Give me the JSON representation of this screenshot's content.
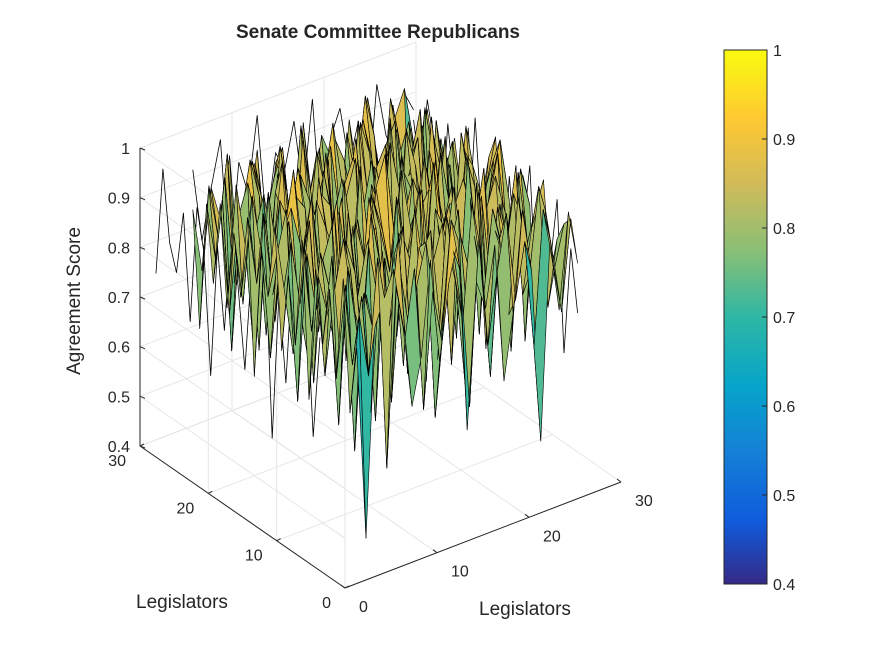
{
  "chart_data": {
    "type": "surface3d",
    "title": "Senate Committee Republicans",
    "xlabel": "Legislators",
    "ylabel": "Legislators",
    "zlabel": "Agreement Score",
    "xlim": [
      0,
      30
    ],
    "ylim": [
      0,
      30
    ],
    "zlim": [
      0.4,
      1
    ],
    "x_ticks": [
      "0",
      "10",
      "20",
      "30"
    ],
    "y_ticks": [
      "0",
      "10",
      "20",
      "30"
    ],
    "z_ticks": [
      "0.4",
      "0.5",
      "0.6",
      "0.7",
      "0.8",
      "0.9",
      "1"
    ],
    "colorbar": {
      "colormap": "parula",
      "limits": [
        0.4,
        1
      ],
      "ticks": [
        "0.4",
        "0.5",
        "0.6",
        "0.7",
        "0.8",
        "0.9",
        "1"
      ]
    },
    "grid": true,
    "surface": {
      "x": [
        5,
        6,
        7,
        8,
        9,
        10,
        11,
        12,
        13,
        14,
        15,
        16,
        17,
        18,
        19,
        20,
        21,
        22,
        23,
        24,
        25,
        26,
        27,
        28,
        29
      ],
      "y": [
        5,
        6,
        7,
        8,
        9,
        10,
        11,
        12,
        13,
        14,
        15,
        16,
        17,
        18,
        19,
        20,
        21,
        22,
        23,
        24,
        25,
        26,
        27,
        28,
        29
      ],
      "z": [
        [
          0.8,
          0.41,
          0.83,
          0.88,
          0.93,
          0.81,
          0.64,
          0.73,
          0.92,
          0.71,
          0.86,
          0.94,
          0.55,
          0.84,
          0.78,
          0.9,
          0.62,
          0.75,
          0.95,
          0.82,
          0.47,
          0.87,
          0.72,
          0.91,
          0.8
        ],
        [
          0.66,
          0.85,
          0.72,
          0.95,
          0.52,
          0.88,
          0.77,
          0.9,
          0.61,
          0.84,
          0.73,
          0.97,
          0.86,
          0.58,
          0.91,
          0.69,
          0.83,
          0.94,
          0.76,
          0.87,
          0.65,
          0.92,
          0.81,
          0.7,
          0.88
        ],
        [
          0.92,
          0.74,
          0.87,
          0.63,
          0.9,
          0.79,
          0.96,
          0.68,
          0.85,
          0.93,
          0.57,
          0.8,
          0.89,
          0.74,
          0.97,
          0.83,
          0.61,
          0.88,
          0.72,
          0.95,
          0.84,
          0.59,
          0.9,
          0.78,
          0.86
        ],
        [
          0.71,
          0.89,
          0.55,
          0.86,
          0.78,
          0.93,
          0.62,
          0.87,
          0.74,
          0.91,
          0.83,
          0.67,
          0.95,
          0.81,
          0.6,
          0.89,
          0.76,
          0.93,
          0.85,
          0.63,
          0.9,
          0.77,
          0.94,
          0.69,
          0.82
        ],
        [
          0.88,
          0.6,
          0.91,
          0.77,
          0.84,
          0.58,
          0.9,
          0.79,
          0.95,
          0.66,
          0.88,
          0.92,
          0.73,
          0.86,
          0.94,
          0.71,
          0.98,
          0.64,
          0.87,
          0.8,
          0.93,
          0.72,
          0.85,
          0.9,
          0.74
        ],
        [
          0.76,
          0.93,
          0.7,
          0.89,
          0.65,
          0.92,
          0.81,
          0.56,
          0.88,
          0.78,
          0.96,
          0.7,
          0.84,
          0.91,
          0.62,
          0.87,
          0.79,
          0.95,
          0.68,
          0.9,
          0.83,
          0.97,
          0.61,
          0.86,
          0.92
        ],
        [
          0.9,
          0.68,
          0.84,
          0.94,
          0.8,
          0.73,
          0.97,
          0.86,
          0.64,
          0.91,
          0.75,
          0.88,
          0.59,
          0.93,
          0.82,
          0.96,
          0.7,
          0.85,
          0.92,
          0.74,
          0.89,
          0.66,
          0.94,
          0.79,
          0.57
        ],
        [
          0.63,
          0.87,
          0.79,
          0.71,
          0.92,
          0.85,
          0.66,
          0.93,
          0.8,
          0.57,
          0.9,
          0.83,
          0.97,
          0.69,
          0.88,
          0.75,
          0.91,
          0.6,
          0.84,
          0.96,
          0.72,
          0.88,
          0.8,
          0.93,
          0.85
        ],
        [
          0.94,
          0.75,
          0.9,
          0.82,
          0.58,
          0.96,
          0.78,
          0.88,
          0.91,
          0.72,
          0.84,
          0.61,
          0.89,
          0.95,
          0.76,
          0.83,
          0.9,
          0.67,
          0.98,
          0.79,
          0.86,
          0.92,
          0.7,
          0.81,
          0.9
        ],
        [
          0.72,
          0.91,
          0.63,
          0.87,
          0.93,
          0.69,
          0.89,
          0.74,
          0.96,
          0.83,
          0.65,
          0.94,
          0.8,
          0.87,
          0.71,
          0.98,
          0.84,
          0.92,
          0.73,
          0.88,
          0.6,
          0.85,
          0.95,
          0.77,
          0.68
        ],
        [
          0.85,
          0.59,
          0.88,
          0.76,
          0.81,
          0.94,
          0.71,
          0.9,
          0.68,
          0.95,
          0.87,
          0.78,
          0.92,
          0.63,
          0.89,
          0.8,
          0.97,
          0.75,
          0.86,
          0.91,
          0.82,
          0.7,
          0.88,
          0.96,
          0.83
        ],
        [
          0.69,
          0.9,
          0.77,
          0.93,
          0.7,
          0.86,
          0.95,
          0.62,
          0.89,
          0.81,
          0.92,
          0.85,
          0.74,
          0.96,
          0.84,
          0.67,
          0.9,
          0.88,
          0.79,
          0.58,
          0.94,
          0.87,
          0.76,
          0.91,
          0.72
        ],
        [
          0.93,
          0.8,
          0.66,
          0.84,
          0.96,
          0.75,
          0.87,
          0.91,
          0.77,
          0.88,
          0.7,
          0.93,
          0.99,
          0.82,
          0.75,
          0.92,
          0.86,
          0.71,
          0.95,
          0.84,
          0.78,
          0.9,
          0.67,
          0.85,
          0.94
        ],
        [
          0.78,
          0.86,
          0.94,
          0.61,
          0.87,
          0.9,
          0.73,
          0.83,
          0.92,
          0.65,
          0.97,
          0.8,
          0.88,
          0.93,
          0.6,
          0.85,
          0.77,
          0.94,
          0.81,
          0.9,
          0.69,
          0.96,
          0.84,
          0.73,
          0.89
        ],
        [
          0.87,
          0.64,
          0.82,
          0.9,
          0.74,
          0.62,
          0.92,
          0.86,
          0.7,
          0.94,
          0.79,
          0.67,
          0.91,
          0.76,
          0.98,
          0.88,
          0.63,
          0.84,
          0.9,
          0.77,
          0.95,
          0.62,
          0.91,
          0.87,
          0.8
        ],
        [
          0.6,
          0.92,
          0.75,
          0.86,
          0.91,
          0.83,
          0.67,
          0.95,
          0.82,
          0.77,
          0.89,
          0.96,
          0.72,
          0.88,
          0.85,
          0.71,
          0.93,
          0.79,
          0.66,
          0.92,
          0.84,
          0.89,
          0.75,
          0.94,
          0.7
        ],
        [
          0.91,
          0.77,
          0.89,
          0.68,
          0.85,
          0.97,
          0.8,
          0.73,
          0.9,
          0.87,
          0.61,
          0.84,
          0.94,
          0.69,
          0.91,
          0.95,
          0.74,
          0.88,
          0.83,
          0.7,
          0.97,
          0.78,
          0.86,
          0.65,
          0.92
        ],
        [
          0.74,
          0.88,
          0.62,
          0.93,
          0.79,
          0.71,
          0.9,
          0.87,
          0.56,
          0.93,
          0.82,
          0.9,
          0.77,
          0.86,
          0.64,
          0.81,
          0.92,
          0.6,
          0.95,
          0.87,
          0.73,
          0.91,
          0.82,
          0.89,
          0.77
        ],
        [
          0.86,
          0.71,
          0.92,
          0.8,
          0.64,
          0.89,
          0.84,
          0.94,
          0.79,
          0.68,
          0.95,
          0.73,
          0.87,
          0.92,
          0.8,
          0.9,
          0.68,
          0.97,
          0.76,
          0.84,
          0.91,
          0.66,
          0.93,
          0.8,
          0.88
        ],
        [
          0.7,
          0.94,
          0.81,
          0.57,
          0.9,
          0.78,
          0.95,
          0.66,
          0.91,
          0.85,
          0.76,
          0.92,
          0.63,
          0.81,
          0.94,
          0.74,
          0.87,
          0.83,
          0.9,
          0.62,
          0.86,
          0.95,
          0.71,
          0.88,
          0.79
        ],
        [
          0.9,
          0.67,
          0.86,
          0.92,
          0.83,
          0.6,
          0.88,
          0.82,
          0.74,
          0.97,
          0.69,
          0.86,
          0.93,
          0.78,
          0.67,
          0.96,
          0.81,
          0.72,
          0.89,
          0.93,
          0.75,
          0.84,
          0.9,
          0.62,
          0.86
        ],
        [
          0.73,
          0.89,
          0.58,
          0.84,
          0.95,
          0.87,
          0.7,
          0.9,
          0.86,
          0.63,
          0.91,
          0.79,
          0.85,
          0.96,
          0.83,
          0.7,
          0.94,
          0.87,
          0.6,
          0.82,
          0.9,
          0.78,
          0.67,
          0.92,
          0.81
        ],
        [
          0.88,
          0.76,
          0.92,
          0.7,
          0.81,
          0.93,
          0.85,
          0.61,
          0.94,
          0.8,
          0.87,
          0.72,
          0.9,
          0.66,
          0.91,
          0.86,
          0.75,
          0.93,
          0.84,
          0.71,
          0.95,
          0.83,
          0.89,
          0.76,
          0.9
        ],
        [
          0.62,
          0.9,
          0.79,
          0.95,
          0.68,
          0.84,
          0.91,
          0.77,
          0.86,
          0.92,
          0.73,
          0.95,
          0.81,
          0.89,
          0.74,
          0.63,
          0.9,
          0.8,
          0.96,
          0.87,
          0.68,
          0.92,
          0.8,
          0.86,
          0.73
        ],
        [
          0.85,
          0.72,
          0.88,
          0.81,
          0.93,
          0.7,
          0.79,
          0.92,
          0.67,
          0.88,
          0.84,
          0.6,
          0.94,
          0.77,
          0.9,
          0.85,
          0.71,
          0.91,
          0.78,
          0.94,
          0.82,
          0.7,
          0.88,
          0.93,
          0.4
        ]
      ]
    },
    "edge_traces": [
      {
        "plane": "x=0",
        "y": [
          5,
          6,
          7,
          8,
          9,
          10,
          11,
          12,
          13,
          14,
          15,
          16,
          17,
          18,
          19,
          20,
          21,
          22,
          23,
          24,
          25,
          26,
          27,
          28,
          29
        ],
        "z": [
          0.85,
          0.64,
          0.92,
          0.79,
          0.96,
          0.71,
          0.88,
          0.58,
          0.93,
          0.76,
          0.9,
          0.68,
          0.84,
          0.95,
          0.73,
          0.89,
          0.62,
          0.86,
          0.94,
          0.7,
          0.91,
          0.78,
          0.83,
          0.97,
          0.75
        ]
      },
      {
        "plane": "y=30",
        "x": [
          5,
          6,
          7,
          8,
          9,
          10,
          11,
          12,
          13,
          14,
          15,
          16,
          17,
          18,
          19,
          20,
          21,
          22,
          23,
          24,
          25,
          26,
          27,
          28,
          29
        ],
        "z": [
          0.93,
          0.78,
          0.88,
          0.97,
          0.7,
          0.91,
          0.84,
          0.99,
          0.76,
          0.9,
          0.86,
          0.95,
          0.8,
          0.98,
          0.72,
          0.89,
          0.94,
          0.82,
          0.9,
          0.74,
          0.96,
          0.85,
          0.8,
          0.92,
          0.88
        ]
      },
      {
        "plane": "x=30",
        "y": [
          5,
          6,
          7,
          8,
          9,
          10,
          11,
          12,
          13,
          14,
          15,
          16,
          17,
          18,
          19,
          20,
          21,
          22,
          23,
          24,
          25,
          26,
          27,
          28,
          29
        ],
        "z": [
          0.7,
          0.82,
          0.6,
          0.9,
          0.76,
          0.85,
          0.66,
          0.93,
          0.79,
          0.72,
          0.88,
          0.64,
          0.91,
          0.8,
          0.74,
          0.95,
          0.69,
          0.87,
          0.77,
          0.9,
          0.68,
          0.84,
          0.92,
          0.75,
          0.86
        ]
      }
    ]
  }
}
